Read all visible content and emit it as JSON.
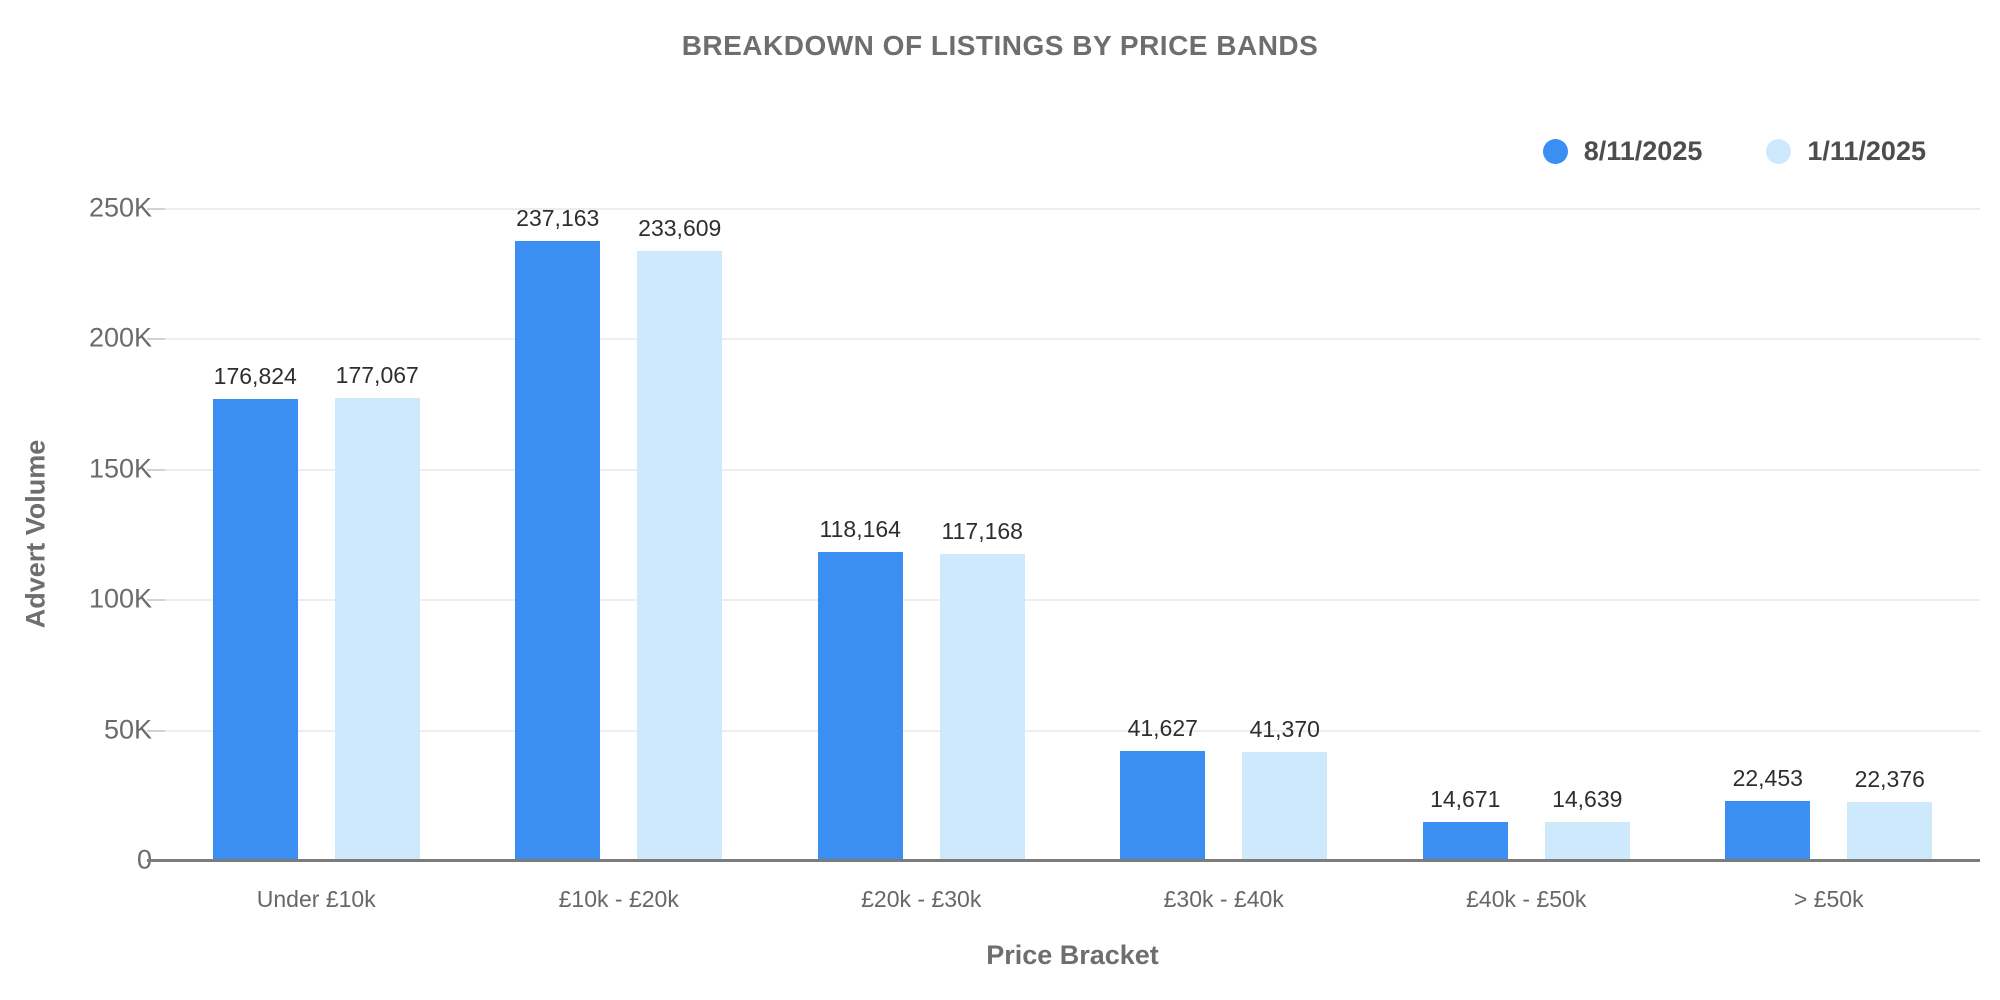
{
  "chart_data": {
    "type": "bar",
    "title": "BREAKDOWN OF LISTINGS BY PRICE BANDS",
    "xlabel": "Price Bracket",
    "ylabel": "Advert Volume",
    "categories": [
      "Under £10k",
      "£10k - £20k",
      "£20k - £30k",
      "£30k - £40k",
      "£40k - £50k",
      "> £50k"
    ],
    "series": [
      {
        "name": "8/11/2025",
        "color": "#3b8ff2",
        "values": [
          176824,
          237163,
          118164,
          41627,
          14671,
          22453
        ]
      },
      {
        "name": "1/11/2025",
        "color": "#cfe9fc",
        "values": [
          177067,
          233609,
          117168,
          41370,
          14639,
          22376
        ]
      }
    ],
    "ylim": [
      0,
      250000
    ],
    "yticks": [
      "0",
      "50K",
      "100K",
      "150K",
      "200K",
      "250K"
    ],
    "grid": true,
    "legend_position": "top-right",
    "data_labels": true
  },
  "colors": {
    "series_1": "#3b8ff2",
    "series_2": "#cfe9fc",
    "title_text": "#6e6e6e",
    "legend_text": "#4d4d4d",
    "tick_text": "#6b6b6b",
    "category_text": "#676767",
    "value_label_text": "#2e2e2e",
    "gridline": "#ededed",
    "baseline": "#7c7c7c"
  }
}
